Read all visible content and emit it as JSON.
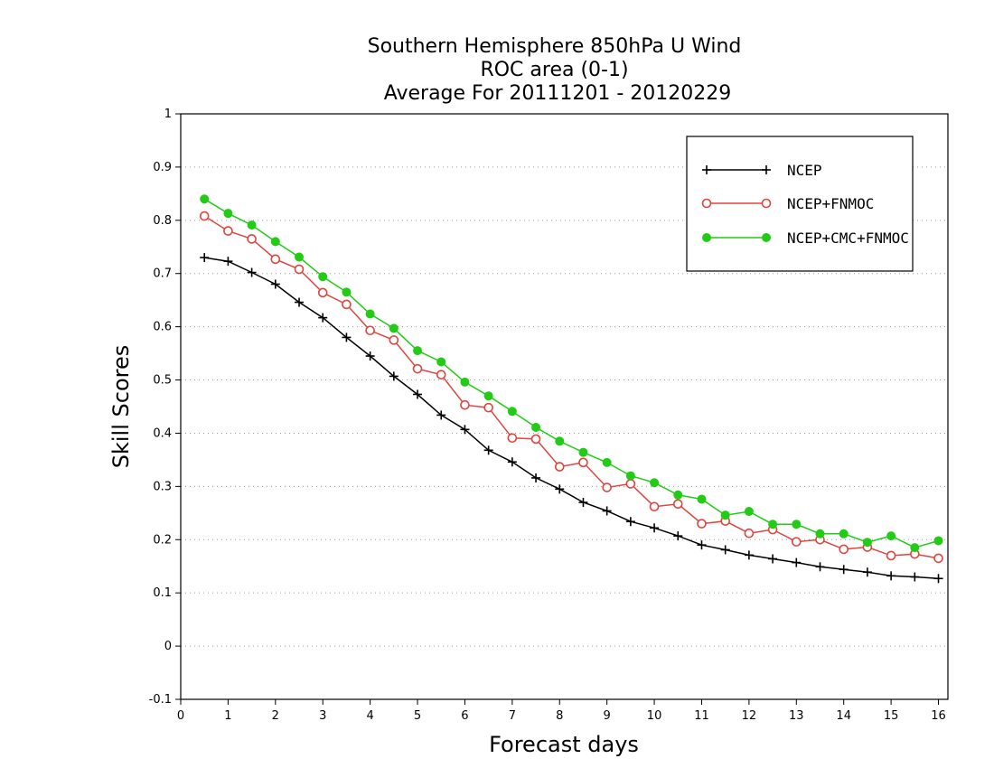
{
  "chart_data": {
    "type": "line",
    "title": [
      "Southern Hemisphere 850hPa U Wind",
      "ROC area (0-1)",
      "Average For 20111201 - 20120229"
    ],
    "xlabel": "Forecast days",
    "ylabel": "Skill Scores",
    "xlim": [
      0,
      16.2
    ],
    "ylim": [
      -0.1,
      1
    ],
    "xticks": [
      0,
      1,
      2,
      3,
      4,
      5,
      6,
      7,
      8,
      9,
      10,
      11,
      12,
      13,
      14,
      15,
      16
    ],
    "yticks": [
      -0.1,
      0,
      0.1,
      0.2,
      0.3,
      0.4,
      0.5,
      0.6,
      0.7,
      0.8,
      0.9,
      1
    ],
    "ytick_labels": [
      "-0.1",
      "0",
      "0.1",
      "0.2",
      "0.3",
      "0.4",
      "0.5",
      "0.6",
      "0.7",
      "0.8",
      "0.9",
      "1"
    ],
    "grid": true,
    "legend_position": "top-right",
    "x": [
      0.5,
      1,
      1.5,
      2,
      2.5,
      3,
      3.5,
      4,
      4.5,
      5,
      5.5,
      6,
      6.5,
      7,
      7.5,
      8,
      8.5,
      9,
      9.5,
      10,
      10.5,
      11,
      11.5,
      12,
      12.5,
      13,
      13.5,
      14,
      14.5,
      15,
      15.5,
      16
    ],
    "series": [
      {
        "name": "NCEP",
        "color": "#000000",
        "marker": "plus",
        "values": [
          0.73,
          0.723,
          0.702,
          0.68,
          0.646,
          0.617,
          0.58,
          0.545,
          0.507,
          0.473,
          0.434,
          0.407,
          0.368,
          0.346,
          0.316,
          0.295,
          0.27,
          0.254,
          0.234,
          0.222,
          0.207,
          0.19,
          0.181,
          0.171,
          0.164,
          0.157,
          0.149,
          0.144,
          0.139,
          0.132,
          0.13,
          0.127
        ]
      },
      {
        "name": "NCEP+FNMOC",
        "color": "#e0443e",
        "marker": "open-circle",
        "values": [
          0.808,
          0.78,
          0.765,
          0.727,
          0.708,
          0.664,
          0.642,
          0.593,
          0.575,
          0.521,
          0.51,
          0.453,
          0.448,
          0.391,
          0.389,
          0.337,
          0.345,
          0.298,
          0.305,
          0.262,
          0.267,
          0.23,
          0.235,
          0.212,
          0.219,
          0.196,
          0.2,
          0.182,
          0.186,
          0.17,
          0.173,
          0.165
        ]
      },
      {
        "name": "NCEP+CMC+FNMOC",
        "color": "#22cc16",
        "marker": "filled-circle",
        "values": [
          0.84,
          0.813,
          0.791,
          0.76,
          0.731,
          0.694,
          0.665,
          0.624,
          0.597,
          0.555,
          0.534,
          0.496,
          0.47,
          0.441,
          0.411,
          0.385,
          0.364,
          0.345,
          0.32,
          0.307,
          0.284,
          0.276,
          0.246,
          0.253,
          0.229,
          0.229,
          0.211,
          0.211,
          0.195,
          0.207,
          0.185,
          0.198
        ]
      }
    ]
  }
}
